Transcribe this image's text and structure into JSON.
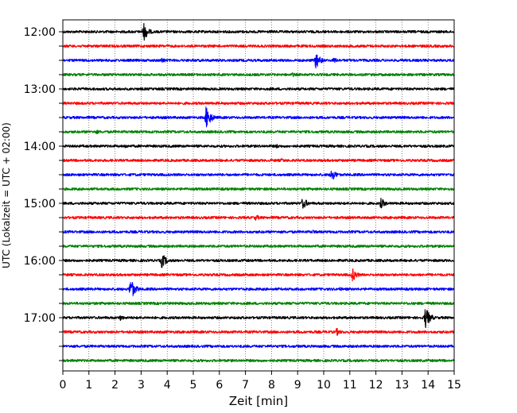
{
  "chart_data": {
    "type": "line",
    "title": "",
    "xlabel": "Zeit  [min]",
    "ylabel": "UTC (Lokalzeit = UTC + 02:00)",
    "xlim": [
      0,
      15
    ],
    "x_ticks": [
      "0",
      "1",
      "2",
      "3",
      "4",
      "5",
      "6",
      "7",
      "8",
      "9",
      "10",
      "11",
      "12",
      "13",
      "14",
      "15"
    ],
    "y_ticks": [
      "12:00",
      "13:00",
      "14:00",
      "15:00",
      "16:00",
      "17:00"
    ],
    "grid": "vertical dotted",
    "colors": [
      "#000000",
      "#ff0000",
      "#0000ff",
      "#008000"
    ],
    "trace_interval_min": 15,
    "traces": [
      {
        "start": "12:00",
        "color": "#000000",
        "events": [
          {
            "t": 3.1,
            "amp": 12
          }
        ]
      },
      {
        "start": "12:15",
        "color": "#ff0000",
        "events": []
      },
      {
        "start": "12:30",
        "color": "#0000ff",
        "events": [
          {
            "t": 3.8,
            "amp": 4
          },
          {
            "t": 9.7,
            "amp": 11
          },
          {
            "t": 10.4,
            "amp": 4
          }
        ]
      },
      {
        "start": "12:45",
        "color": "#008000",
        "events": [
          {
            "t": 8.8,
            "amp": 3
          }
        ]
      },
      {
        "start": "13:00",
        "color": "#000000",
        "events": []
      },
      {
        "start": "13:15",
        "color": "#ff0000",
        "events": []
      },
      {
        "start": "13:30",
        "color": "#0000ff",
        "events": [
          {
            "t": 5.5,
            "amp": 15
          }
        ]
      },
      {
        "start": "13:45",
        "color": "#008000",
        "events": [
          {
            "t": 1.3,
            "amp": 3
          }
        ]
      },
      {
        "start": "14:00",
        "color": "#000000",
        "events": [
          {
            "t": 2.4,
            "amp": 3
          },
          {
            "t": 8.2,
            "amp": 3
          }
        ]
      },
      {
        "start": "14:15",
        "color": "#ff0000",
        "events": [
          {
            "t": 8.4,
            "amp": 3
          }
        ]
      },
      {
        "start": "14:30",
        "color": "#0000ff",
        "events": [
          {
            "t": 10.3,
            "amp": 9
          }
        ]
      },
      {
        "start": "14:45",
        "color": "#008000",
        "events": []
      },
      {
        "start": "15:00",
        "color": "#000000",
        "events": [
          {
            "t": 9.2,
            "amp": 8
          },
          {
            "t": 12.2,
            "amp": 7
          }
        ]
      },
      {
        "start": "15:15",
        "color": "#ff0000",
        "events": [
          {
            "t": 7.4,
            "amp": 4
          }
        ]
      },
      {
        "start": "15:30",
        "color": "#0000ff",
        "events": [
          {
            "t": 9.6,
            "amp": 3
          }
        ]
      },
      {
        "start": "15:45",
        "color": "#008000",
        "events": []
      },
      {
        "start": "16:00",
        "color": "#000000",
        "events": [
          {
            "t": 3.8,
            "amp": 10
          }
        ]
      },
      {
        "start": "16:15",
        "color": "#ff0000",
        "events": [
          {
            "t": 11.1,
            "amp": 9
          }
        ]
      },
      {
        "start": "16:30",
        "color": "#0000ff",
        "events": [
          {
            "t": 2.6,
            "amp": 14
          },
          {
            "t": 10.6,
            "amp": 3
          }
        ]
      },
      {
        "start": "16:45",
        "color": "#008000",
        "events": []
      },
      {
        "start": "17:00",
        "color": "#000000",
        "events": [
          {
            "t": 2.2,
            "amp": 4
          },
          {
            "t": 13.9,
            "amp": 14
          }
        ]
      },
      {
        "start": "17:15",
        "color": "#ff0000",
        "events": [
          {
            "t": 10.5,
            "amp": 5
          }
        ]
      },
      {
        "start": "17:30",
        "color": "#0000ff",
        "events": []
      },
      {
        "start": "17:45",
        "color": "#008000",
        "events": [
          {
            "t": 4.5,
            "amp": 2
          }
        ]
      }
    ]
  }
}
